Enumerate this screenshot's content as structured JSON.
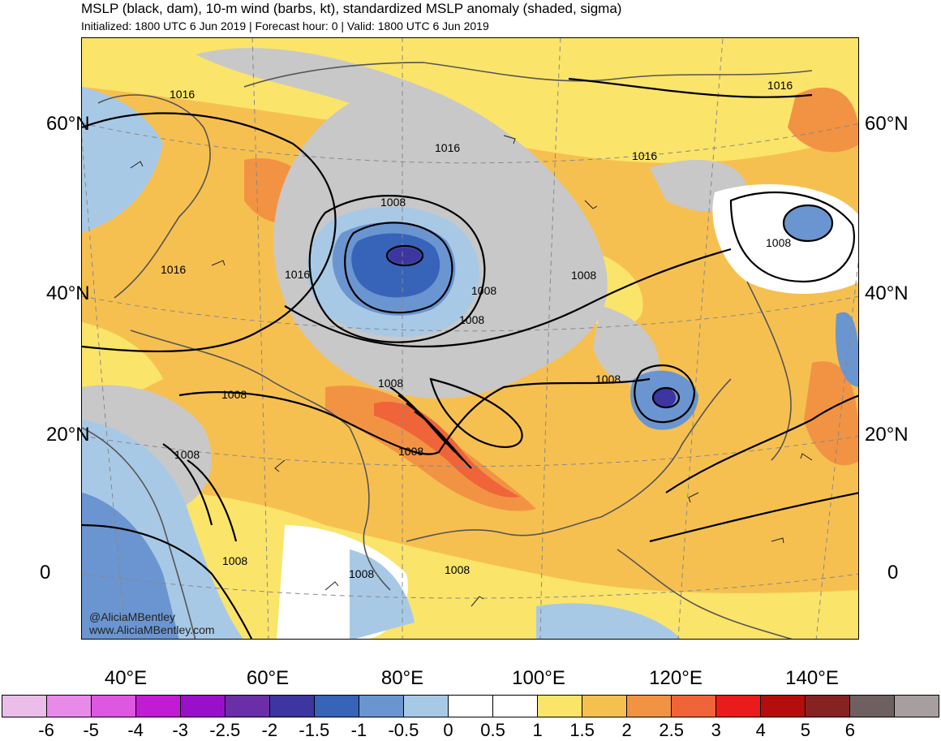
{
  "header": {
    "title": "MSLP (black, dam), 10-m wind (barbs, kt), standardized MSLP anomaly (shaded, sigma)",
    "subtitle": "Initialized: 1800 UTC 6 Jun 2019 | Forecast hour: 0 | Valid: 1800 UTC 6 Jun 2019"
  },
  "map": {
    "lat_labels": [
      "60°N",
      "40°N",
      "20°N",
      "0"
    ],
    "lon_labels": [
      "40°E",
      "60°E",
      "80°E",
      "100°E",
      "120°E",
      "140°E"
    ],
    "contour_labels": [
      "1016",
      "1016",
      "1016",
      "1016",
      "1016",
      "1016",
      "1008",
      "1008",
      "1008",
      "1008",
      "1008",
      "1008",
      "1008",
      "1008",
      "1008",
      "1008",
      "1008",
      "1008"
    ],
    "colors": {
      "land_outline": "#555555",
      "contour": "#000000",
      "grid": "#888888"
    }
  },
  "watermark": {
    "handle": "@AliciaMBentley",
    "site": "www.AliciaMBentley.com"
  },
  "colorbar": {
    "colors": [
      "#ebbde9",
      "#e88ae8",
      "#de57e0",
      "#c01cd4",
      "#9910c8",
      "#6a2fa8",
      "#3d35a0",
      "#3763b9",
      "#6b95d0",
      "#a8c9e6",
      "#ffffff",
      "#ffffff",
      "#fbe46a",
      "#f6c051",
      "#f29344",
      "#f0643a",
      "#ea1b1b",
      "#b40d0d",
      "#862222",
      "#6e6060",
      "#a79f9f"
    ],
    "ticks": [
      "-6",
      "-5",
      "-4",
      "-3",
      "-2.5",
      "-2",
      "-1.5",
      "-1",
      "-0.5",
      "0",
      "0.5",
      "1",
      "1.5",
      "2",
      "2.5",
      "3",
      "4",
      "5",
      "6"
    ]
  }
}
